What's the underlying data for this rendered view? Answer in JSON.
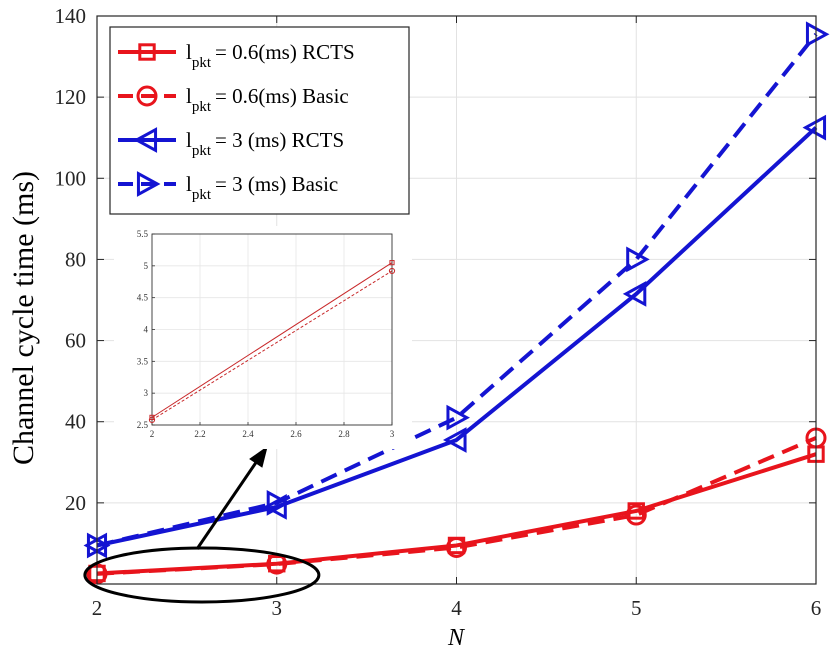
{
  "chart_data": {
    "type": "line",
    "title": "",
    "xlabel": "N",
    "ylabel": "Channel cycle time (ms)",
    "x": [
      2,
      3,
      4,
      5,
      6
    ],
    "xlim": [
      2,
      6
    ],
    "ylim": [
      0,
      140
    ],
    "xticks": [
      "2",
      "3",
      "4",
      "5",
      "6"
    ],
    "yticks": [
      "20",
      "40",
      "60",
      "80",
      "100",
      "120",
      "140"
    ],
    "grid": true,
    "legend_position": "top-left",
    "series": [
      {
        "name": "0.6(ms) RCTS",
        "legend_main": "l",
        "legend_sub": "pkt",
        "legend_rest": "= 0.6(ms) RCTS",
        "color": "#e8141c",
        "dash": "solid",
        "marker": "square",
        "values": [
          2.6,
          5.0,
          9.5,
          18.0,
          32.0
        ]
      },
      {
        "name": "0.6(ms) Basic",
        "legend_main": "l",
        "legend_sub": "pkt",
        "legend_rest": "= 0.6(ms) Basic",
        "color": "#e8141c",
        "dash": "dashed",
        "marker": "circle",
        "values": [
          2.5,
          4.9,
          9.0,
          17.0,
          36.0
        ]
      },
      {
        "name": "3 (ms) RCTS",
        "legend_main": "l",
        "legend_sub": "pkt",
        "legend_rest": "=  3 (ms) RCTS",
        "color": "#1414d2",
        "dash": "solid",
        "marker": "triangle-left",
        "values": [
          9.5,
          19.0,
          35.5,
          71.5,
          112.5
        ]
      },
      {
        "name": "3 (ms) Basic",
        "legend_main": "l",
        "legend_sub": "pkt",
        "legend_rest": "=  3 (ms) Basic",
        "color": "#1414d2",
        "dash": "dashed",
        "marker": "triangle-right",
        "values": [
          9.5,
          20.0,
          41.0,
          80.0,
          135.5
        ]
      }
    ],
    "inset": {
      "x": [
        2,
        3
      ],
      "xlim": [
        2,
        3
      ],
      "ylim": [
        2.5,
        5.5
      ],
      "xticks": [
        "2",
        "2.2",
        "2.4",
        "2.6",
        "2.8",
        "3"
      ],
      "yticks": [
        "2.5",
        "3",
        "3.5",
        "4",
        "4.5",
        "5",
        "5.5"
      ],
      "series": [
        {
          "name": "RCTS",
          "color": "#c8282a",
          "dash": "solid",
          "marker": "square",
          "values": [
            2.62,
            5.05
          ]
        },
        {
          "name": "Basic",
          "color": "#c8282a",
          "dash": "dashed",
          "marker": "circle",
          "values": [
            2.58,
            4.92
          ]
        }
      ]
    },
    "annotations": [
      {
        "type": "ellipse",
        "label": "zoom region",
        "x_range": [
          2,
          3
        ]
      },
      {
        "type": "arrow",
        "label": "points to inset"
      }
    ]
  }
}
